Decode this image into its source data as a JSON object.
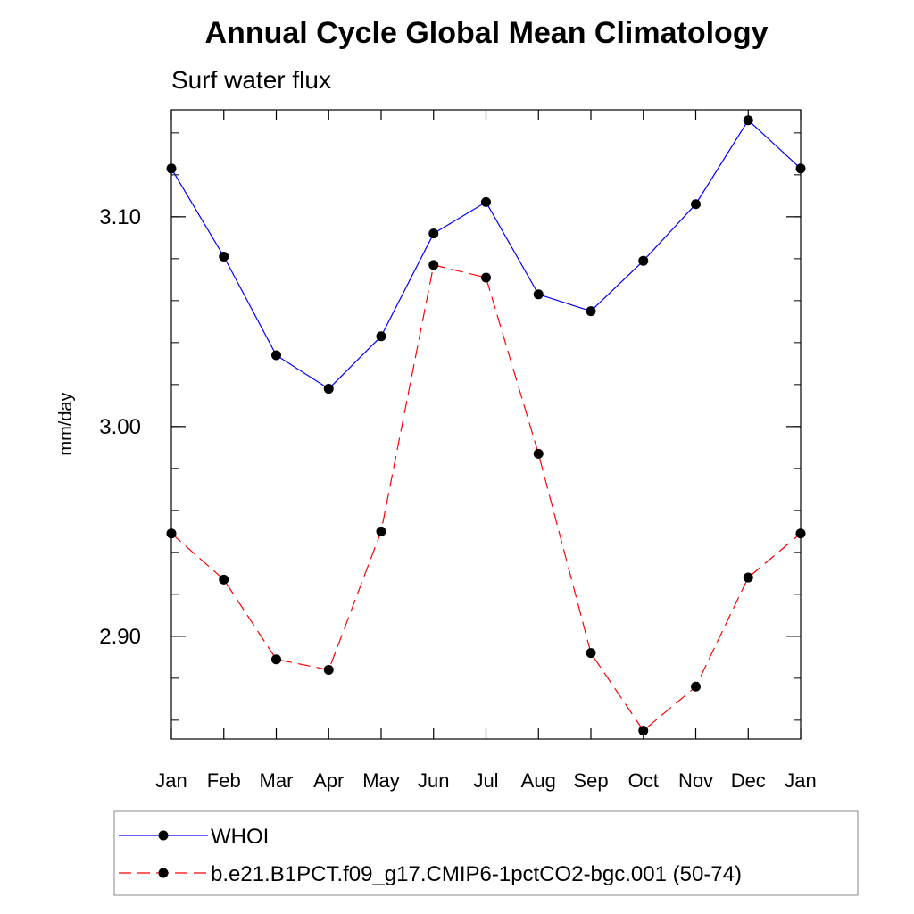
{
  "chart_data": {
    "type": "line",
    "title": "Annual Cycle Global Mean Climatology",
    "subtitle": "Surf water flux",
    "xlabel": "",
    "ylabel": "mm/day",
    "categories": [
      "Jan",
      "Feb",
      "Mar",
      "Apr",
      "May",
      "Jun",
      "Jul",
      "Aug",
      "Sep",
      "Oct",
      "Nov",
      "Dec",
      "Jan"
    ],
    "ylim": [
      2.851,
      3.151
    ],
    "yticks": [
      2.9,
      3.0,
      3.1
    ],
    "ytick_labels": [
      "2.90",
      "3.00",
      "3.10"
    ],
    "grid": false,
    "legend_position": "bottom",
    "series": [
      {
        "name": "WHOI",
        "color": "#0000ff",
        "style": "solid",
        "values": [
          3.123,
          3.081,
          3.034,
          3.018,
          3.043,
          3.092,
          3.107,
          3.063,
          3.055,
          3.079,
          3.106,
          3.146,
          3.123
        ]
      },
      {
        "name": "b.e21.B1PCT.f09_g17.CMIP6-1pctCO2-bgc.001 (50-74)",
        "color": "#ff0000",
        "style": "dashed",
        "values": [
          2.949,
          2.927,
          2.889,
          2.884,
          2.95,
          3.077,
          3.071,
          2.987,
          2.892,
          2.855,
          2.876,
          2.928,
          2.949
        ]
      }
    ]
  }
}
